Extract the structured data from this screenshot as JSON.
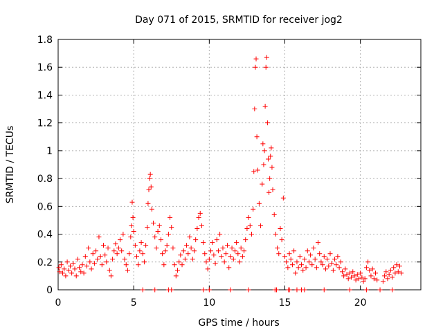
{
  "chart_data": {
    "type": "scatter",
    "title": "Day 071 of 2015, SRMTID for receiver jog2",
    "xlabel": "GPS time / hours",
    "ylabel": "SRMTID / TECUs",
    "xlim": [
      0,
      24
    ],
    "ylim": [
      0,
      1.8
    ],
    "x_ticks": [
      0,
      5,
      10,
      15,
      20
    ],
    "x_tick_labels": [
      "0",
      "5",
      "10",
      "15",
      "20"
    ],
    "y_ticks": [
      0,
      0.2,
      0.4,
      0.6,
      0.8,
      1.0,
      1.2,
      1.4,
      1.6,
      1.8
    ],
    "y_tick_labels": [
      "0",
      "0.2",
      "0.4",
      "0.6",
      "0.8",
      "1",
      "1.2",
      "1.4",
      "1.6",
      "1.8"
    ],
    "grid": true,
    "marker": "+",
    "color": "#ff0000",
    "series": [
      {
        "name": "SRMTID",
        "points": [
          [
            0.05,
            0.16
          ],
          [
            0.1,
            0.13
          ],
          [
            0.2,
            0.18
          ],
          [
            0.3,
            0.12
          ],
          [
            0.4,
            0.15
          ],
          [
            0.5,
            0.1
          ],
          [
            0.6,
            0.2
          ],
          [
            0.7,
            0.14
          ],
          [
            0.8,
            0.17
          ],
          [
            0.9,
            0.12
          ],
          [
            1.0,
            0.19
          ],
          [
            1.1,
            0.15
          ],
          [
            1.2,
            0.1
          ],
          [
            1.3,
            0.22
          ],
          [
            1.4,
            0.16
          ],
          [
            1.5,
            0.13
          ],
          [
            1.6,
            0.18
          ],
          [
            1.7,
            0.12
          ],
          [
            1.8,
            0.24
          ],
          [
            1.9,
            0.17
          ],
          [
            2.0,
            0.3
          ],
          [
            2.1,
            0.2
          ],
          [
            2.2,
            0.15
          ],
          [
            2.3,
            0.26
          ],
          [
            2.4,
            0.19
          ],
          [
            2.5,
            0.28
          ],
          [
            2.6,
            0.22
          ],
          [
            2.7,
            0.38
          ],
          [
            2.8,
            0.24
          ],
          [
            2.9,
            0.18
          ],
          [
            3.0,
            0.32
          ],
          [
            3.1,
            0.25
          ],
          [
            3.2,
            0.2
          ],
          [
            3.3,
            0.3
          ],
          [
            3.4,
            0.14
          ],
          [
            3.5,
            0.1
          ],
          [
            3.6,
            0.22
          ],
          [
            3.7,
            0.28
          ],
          [
            3.8,
            0.33
          ],
          [
            3.9,
            0.26
          ],
          [
            4.0,
            0.3
          ],
          [
            4.1,
            0.36
          ],
          [
            4.2,
            0.28
          ],
          [
            4.3,
            0.4
          ],
          [
            4.4,
            0.22
          ],
          [
            4.5,
            0.18
          ],
          [
            4.6,
            0.14
          ],
          [
            4.7,
            0.26
          ],
          [
            4.8,
            0.38
          ],
          [
            4.85,
            0.46
          ],
          [
            4.9,
            0.63
          ],
          [
            4.95,
            0.52
          ],
          [
            5.0,
            0.42
          ],
          [
            5.1,
            0.32
          ],
          [
            5.2,
            0.24
          ],
          [
            5.3,
            0.18
          ],
          [
            5.4,
            0.28
          ],
          [
            5.5,
            0.34
          ],
          [
            5.6,
            0.26
          ],
          [
            5.7,
            0.2
          ],
          [
            5.8,
            0.32
          ],
          [
            5.9,
            0.45
          ],
          [
            5.95,
            0.62
          ],
          [
            6.0,
            0.72
          ],
          [
            6.05,
            0.8
          ],
          [
            6.1,
            0.83
          ],
          [
            6.15,
            0.74
          ],
          [
            6.2,
            0.58
          ],
          [
            6.3,
            0.48
          ],
          [
            6.4,
            0.38
          ],
          [
            6.5,
            0.3
          ],
          [
            6.6,
            0.42
          ],
          [
            6.7,
            0.46
          ],
          [
            6.8,
            0.36
          ],
          [
            6.9,
            0.26
          ],
          [
            7.0,
            0.18
          ],
          [
            7.1,
            0.28
          ],
          [
            7.2,
            0.32
          ],
          [
            7.3,
            0.4
          ],
          [
            7.4,
            0.52
          ],
          [
            7.5,
            0.45
          ],
          [
            7.6,
            0.3
          ],
          [
            7.7,
            0.18
          ],
          [
            7.8,
            0.1
          ],
          [
            7.9,
            0.14
          ],
          [
            8.0,
            0.2
          ],
          [
            8.1,
            0.25
          ],
          [
            8.2,
            0.18
          ],
          [
            8.3,
            0.28
          ],
          [
            8.4,
            0.22
          ],
          [
            8.5,
            0.32
          ],
          [
            8.6,
            0.26
          ],
          [
            8.7,
            0.38
          ],
          [
            8.8,
            0.3
          ],
          [
            8.9,
            0.22
          ],
          [
            9.0,
            0.28
          ],
          [
            9.1,
            0.36
          ],
          [
            9.2,
            0.44
          ],
          [
            9.3,
            0.52
          ],
          [
            9.4,
            0.55
          ],
          [
            9.5,
            0.46
          ],
          [
            9.6,
            0.34
          ],
          [
            9.7,
            0.26
          ],
          [
            9.8,
            0.2
          ],
          [
            9.9,
            0.15
          ],
          [
            10.0,
            0.22
          ],
          [
            10.1,
            0.28
          ],
          [
            10.2,
            0.34
          ],
          [
            10.3,
            0.25
          ],
          [
            10.4,
            0.19
          ],
          [
            10.5,
            0.36
          ],
          [
            10.6,
            0.28
          ],
          [
            10.7,
            0.4
          ],
          [
            10.8,
            0.24
          ],
          [
            10.9,
            0.3
          ],
          [
            11.0,
            0.2
          ],
          [
            11.1,
            0.26
          ],
          [
            11.2,
            0.32
          ],
          [
            11.3,
            0.16
          ],
          [
            11.4,
            0.24
          ],
          [
            11.5,
            0.3
          ],
          [
            11.6,
            0.22
          ],
          [
            11.7,
            0.28
          ],
          [
            11.8,
            0.34
          ],
          [
            11.9,
            0.26
          ],
          [
            12.0,
            0.2
          ],
          [
            12.1,
            0.3
          ],
          [
            12.2,
            0.24
          ],
          [
            12.3,
            0.28
          ],
          [
            12.4,
            0.36
          ],
          [
            12.5,
            0.44
          ],
          [
            12.6,
            0.52
          ],
          [
            12.7,
            0.46
          ],
          [
            12.8,
            0.4
          ],
          [
            12.9,
            0.58
          ],
          [
            12.95,
            0.85
          ],
          [
            13.0,
            1.3
          ],
          [
            13.05,
            1.6
          ],
          [
            13.1,
            1.66
          ],
          [
            13.15,
            1.1
          ],
          [
            13.2,
            0.86
          ],
          [
            13.3,
            0.62
          ],
          [
            13.4,
            0.46
          ],
          [
            13.5,
            0.76
          ],
          [
            13.55,
            1.05
          ],
          [
            13.6,
            0.9
          ],
          [
            13.65,
            1.0
          ],
          [
            13.7,
            1.32
          ],
          [
            13.75,
            1.6
          ],
          [
            13.8,
            1.67
          ],
          [
            13.85,
            1.2
          ],
          [
            13.9,
            0.94
          ],
          [
            13.95,
            0.7
          ],
          [
            14.0,
            0.8
          ],
          [
            14.05,
            0.96
          ],
          [
            14.1,
            1.02
          ],
          [
            14.15,
            0.88
          ],
          [
            14.2,
            0.72
          ],
          [
            14.3,
            0.54
          ],
          [
            14.4,
            0.4
          ],
          [
            14.5,
            0.3
          ],
          [
            14.6,
            0.26
          ],
          [
            14.7,
            0.44
          ],
          [
            14.8,
            0.36
          ],
          [
            14.9,
            0.66
          ],
          [
            15.0,
            0.24
          ],
          [
            15.1,
            0.2
          ],
          [
            15.2,
            0.16
          ],
          [
            15.3,
            0.26
          ],
          [
            15.4,
            0.22
          ],
          [
            15.5,
            0.18
          ],
          [
            15.6,
            0.28
          ],
          [
            15.7,
            0.12
          ],
          [
            15.8,
            0.2
          ],
          [
            15.9,
            0.16
          ],
          [
            16.0,
            0.24
          ],
          [
            16.1,
            0.18
          ],
          [
            16.2,
            0.14
          ],
          [
            16.3,
            0.22
          ],
          [
            16.4,
            0.16
          ],
          [
            16.5,
            0.28
          ],
          [
            16.6,
            0.2
          ],
          [
            16.7,
            0.25
          ],
          [
            16.8,
            0.18
          ],
          [
            16.9,
            0.3
          ],
          [
            17.0,
            0.22
          ],
          [
            17.1,
            0.16
          ],
          [
            17.2,
            0.34
          ],
          [
            17.3,
            0.26
          ],
          [
            17.4,
            0.2
          ],
          [
            17.5,
            0.18
          ],
          [
            17.6,
            0.24
          ],
          [
            17.7,
            0.15
          ],
          [
            17.8,
            0.22
          ],
          [
            17.9,
            0.17
          ],
          [
            18.0,
            0.26
          ],
          [
            18.1,
            0.19
          ],
          [
            18.2,
            0.14
          ],
          [
            18.3,
            0.22
          ],
          [
            18.4,
            0.18
          ],
          [
            18.5,
            0.24
          ],
          [
            18.6,
            0.16
          ],
          [
            18.7,
            0.2
          ],
          [
            18.8,
            0.13
          ],
          [
            18.9,
            0.1
          ],
          [
            19.0,
            0.15
          ],
          [
            19.1,
            0.11
          ],
          [
            19.2,
            0.08
          ],
          [
            19.3,
            0.12
          ],
          [
            19.4,
            0.09
          ],
          [
            19.5,
            0.13
          ],
          [
            19.6,
            0.1
          ],
          [
            19.7,
            0.07
          ],
          [
            19.8,
            0.11
          ],
          [
            19.9,
            0.08
          ],
          [
            20.0,
            0.12
          ],
          [
            20.1,
            0.09
          ],
          [
            20.2,
            0.06
          ],
          [
            20.3,
            0.08
          ],
          [
            20.4,
            0.16
          ],
          [
            20.5,
            0.2
          ],
          [
            20.6,
            0.14
          ],
          [
            20.7,
            0.1
          ],
          [
            20.8,
            0.15
          ],
          [
            20.9,
            0.08
          ],
          [
            21.0,
            0.12
          ],
          [
            21.1,
            0.07
          ],
          [
            21.5,
            0.06
          ],
          [
            21.6,
            0.1
          ],
          [
            21.7,
            0.13
          ],
          [
            21.8,
            0.08
          ],
          [
            21.9,
            0.11
          ],
          [
            22.0,
            0.14
          ],
          [
            22.1,
            0.09
          ],
          [
            22.2,
            0.16
          ],
          [
            22.3,
            0.12
          ],
          [
            22.4,
            0.18
          ],
          [
            22.5,
            0.13
          ],
          [
            22.6,
            0.17
          ],
          [
            22.7,
            0.12
          ]
        ],
        "zero_points": [
          5.6,
          6.4,
          7.3,
          7.5,
          9.6,
          10.0,
          11.4,
          12.6,
          14.35,
          14.45,
          15.25,
          15.3,
          15.8,
          16.1,
          16.3,
          17.6,
          19.3,
          20.4,
          21.3,
          22.1
        ]
      }
    ]
  }
}
